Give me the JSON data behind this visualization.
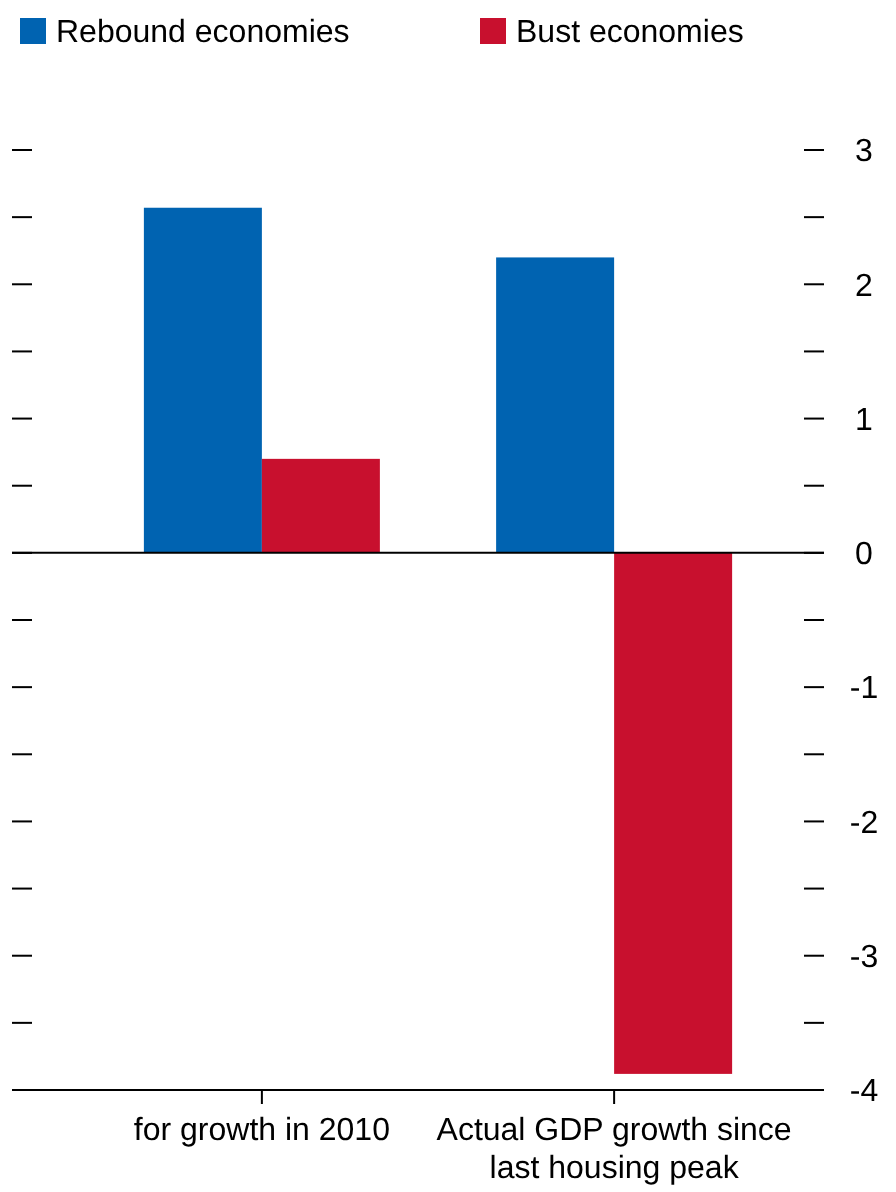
{
  "chart_data": {
    "type": "bar",
    "categories": [
      "for growth in 2010",
      "Actual GDP growth since last housing peak"
    ],
    "series": [
      {
        "name": "Rebound economies",
        "color": "#0063b1",
        "values": [
          2.57,
          2.2
        ]
      },
      {
        "name": "Bust economies",
        "color": "#c8102e",
        "values": [
          0.7,
          -3.88
        ]
      }
    ],
    "ylim": [
      -4,
      3
    ],
    "yticks": [
      {
        "value": -4,
        "label": "-4"
      },
      {
        "value": -3.5,
        "label": null
      },
      {
        "value": -3,
        "label": "-3"
      },
      {
        "value": -2.5,
        "label": null
      },
      {
        "value": -2,
        "label": "-2"
      },
      {
        "value": -1.5,
        "label": null
      },
      {
        "value": -1,
        "label": "-1"
      },
      {
        "value": -0.5,
        "label": null
      },
      {
        "value": 0,
        "label": "0"
      },
      {
        "value": 0.5,
        "label": null
      },
      {
        "value": 1,
        "label": "1"
      },
      {
        "value": 1.5,
        "label": null
      },
      {
        "value": 2,
        "label": "2"
      },
      {
        "value": 2.5,
        "label": null
      },
      {
        "value": 3,
        "label": "3"
      }
    ],
    "grid": false,
    "legend": "top",
    "ref_lines": [
      {
        "axis": "y",
        "value": 0,
        "color": "#000000"
      }
    ]
  }
}
